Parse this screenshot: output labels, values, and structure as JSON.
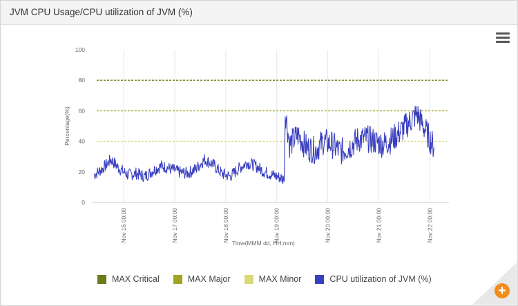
{
  "panel": {
    "title": "JVM CPU Usage/CPU utilization of JVM (%)"
  },
  "menu": {
    "icon": "hamburger-menu-icon"
  },
  "zoom": {
    "icon": "zoom-in-plus-icon",
    "glyph": "+"
  },
  "colors": {
    "max_critical": "#6e7a1a",
    "max_major": "#a3a326",
    "max_minor": "#d9d97a",
    "cpu_series": "#3a3fbf",
    "zoom_button": "#f28c1a"
  },
  "chart_data": {
    "type": "line",
    "ylabel": "Percentage(%)",
    "xlabel": "Time(MMM dd, HH:mm)",
    "ylim": [
      0,
      100
    ],
    "yticks": [
      0,
      20,
      40,
      60,
      80,
      100
    ],
    "xlim": [
      "Nov 15 09:00",
      "Nov 22 09:00"
    ],
    "xticks": [
      "Nov 16 00:00",
      "Nov 17 00:00",
      "Nov 18 00:00",
      "Nov 19 00:00",
      "Nov 20 00:00",
      "Nov 21 00:00",
      "Nov 22 00:00"
    ],
    "grid": "vertical",
    "legend_position": "bottom",
    "thresholds": [
      {
        "name": "MAX Critical",
        "value": 80
      },
      {
        "name": "MAX Major",
        "value": 60
      },
      {
        "name": "MAX Minor",
        "value": 40
      }
    ],
    "series": [
      {
        "name": "CPU utilization of JVM (%)",
        "x": [
          "Nov 15 10:00",
          "Nov 15 14:00",
          "Nov 15 18:00",
          "Nov 15 22:00",
          "Nov 16 02:00",
          "Nov 16 06:00",
          "Nov 16 10:00",
          "Nov 16 14:00",
          "Nov 16 18:00",
          "Nov 16 22:00",
          "Nov 17 02:00",
          "Nov 17 06:00",
          "Nov 17 10:00",
          "Nov 17 14:00",
          "Nov 17 18:00",
          "Nov 17 22:00",
          "Nov 18 02:00",
          "Nov 18 06:00",
          "Nov 18 10:00",
          "Nov 18 14:00",
          "Nov 18 18:00",
          "Nov 18 22:00",
          "Nov 19 02:00",
          "Nov 19 03:30",
          "Nov 19 04:00",
          "Nov 19 06:00",
          "Nov 19 10:00",
          "Nov 19 14:00",
          "Nov 19 18:00",
          "Nov 19 22:00",
          "Nov 20 02:00",
          "Nov 20 06:00",
          "Nov 20 10:00",
          "Nov 20 14:00",
          "Nov 20 18:00",
          "Nov 20 22:00",
          "Nov 21 02:00",
          "Nov 21 06:00",
          "Nov 21 10:00",
          "Nov 21 14:00",
          "Nov 21 18:00",
          "Nov 21 22:00",
          "Nov 22 02:00"
        ],
        "values": [
          18,
          22,
          28,
          22,
          18,
          19,
          17,
          21,
          24,
          22,
          20,
          19,
          22,
          28,
          25,
          19,
          17,
          22,
          26,
          24,
          20,
          18,
          16,
          15,
          60,
          38,
          44,
          36,
          34,
          40,
          38,
          33,
          36,
          41,
          42,
          40,
          38,
          41,
          46,
          52,
          58,
          47,
          36
        ]
      }
    ]
  },
  "legend": [
    {
      "label": "MAX Critical",
      "color": "#6e7a1a"
    },
    {
      "label": "MAX Major",
      "color": "#a3a326"
    },
    {
      "label": "MAX Minor",
      "color": "#d9d97a"
    },
    {
      "label": "CPU utilization of JVM (%)",
      "color": "#3a3fbf"
    }
  ]
}
